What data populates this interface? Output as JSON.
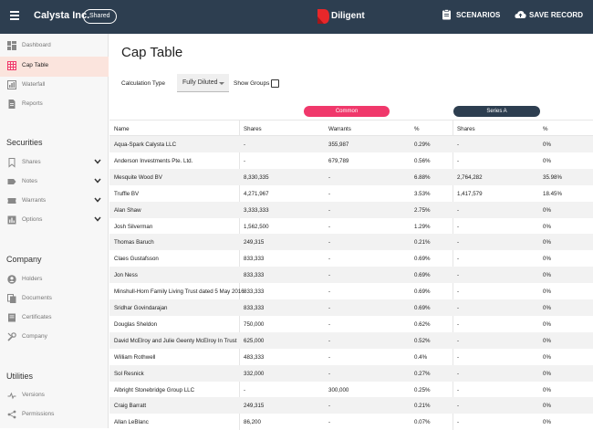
{
  "topbar": {
    "app_title": "Calysta Inc.",
    "shared_badge": "Shared",
    "brand_name": "Diligent",
    "scenarios_label": "SCENARIOS",
    "save_label": "SAVE RECORD",
    "bg_color": "#2d3e50",
    "brand_color": "#e8272a"
  },
  "sidebar": {
    "top_items": [
      {
        "label": "Dashboard",
        "icon": "dashboard-icon"
      },
      {
        "label": "Cap Table",
        "icon": "grid-icon",
        "active": true
      },
      {
        "label": "Waterfall",
        "icon": "waterfall-icon"
      },
      {
        "label": "Reports",
        "icon": "document-icon"
      }
    ],
    "securities_title": "Securities",
    "securities_items": [
      {
        "label": "Shares",
        "icon": "bookmark-icon"
      },
      {
        "label": "Notes",
        "icon": "tag-icon"
      },
      {
        "label": "Warrants",
        "icon": "ticket-icon"
      },
      {
        "label": "Options",
        "icon": "bar-chart-icon"
      }
    ],
    "company_title": "Company",
    "company_items": [
      {
        "label": "Holders",
        "icon": "person-icon"
      },
      {
        "label": "Documents",
        "icon": "files-icon"
      },
      {
        "label": "Certificates",
        "icon": "certificate-icon"
      },
      {
        "label": "Company",
        "icon": "tools-icon"
      }
    ],
    "utilities_title": "Utilities",
    "utilities_items": [
      {
        "label": "Versions",
        "icon": "versions-icon"
      },
      {
        "label": "Permissions",
        "icon": "share-icon"
      }
    ],
    "active_bg": "#fbe4dd",
    "active_icon_color": "#f0386b"
  },
  "main": {
    "title": "Cap Table",
    "calc_label": "Calculation Type",
    "calc_value": "Fully Diluted",
    "show_groups_label": "Show Groups",
    "show_groups_checked": false
  },
  "table": {
    "group_common": "Common",
    "group_series_a": "Series A",
    "common_color": "#f0386b",
    "series_a_color": "#2d3e50",
    "headers": {
      "name": "Name",
      "shares": "Shares",
      "warrants": "Warrants",
      "pct": "%",
      "sa_shares": "Shares",
      "sa_pct": "%"
    },
    "rows": [
      {
        "name": "Aqua-Spark Calysta LLC",
        "shares": "-",
        "warrants": "355,987",
        "pct": "0.29%",
        "sa_shares": "-",
        "sa_pct": "0%"
      },
      {
        "name": "Anderson Investments Pte. Ltd.",
        "shares": "-",
        "warrants": "679,789",
        "pct": "0.56%",
        "sa_shares": "-",
        "sa_pct": "0%"
      },
      {
        "name": "Mesquite Wood BV",
        "shares": "8,330,335",
        "warrants": "-",
        "pct": "6.88%",
        "sa_shares": "2,764,282",
        "sa_pct": "35.98%"
      },
      {
        "name": "Truffle BV",
        "shares": "4,271,967",
        "warrants": "-",
        "pct": "3.53%",
        "sa_shares": "1,417,579",
        "sa_pct": "18.45%"
      },
      {
        "name": "Alan Shaw",
        "shares": "3,333,333",
        "warrants": "-",
        "pct": "2.75%",
        "sa_shares": "-",
        "sa_pct": "0%"
      },
      {
        "name": "Josh Silverman",
        "shares": "1,562,500",
        "warrants": "-",
        "pct": "1.29%",
        "sa_shares": "-",
        "sa_pct": "0%"
      },
      {
        "name": "Thomas Baruch",
        "shares": "249,315",
        "warrants": "-",
        "pct": "0.21%",
        "sa_shares": "-",
        "sa_pct": "0%"
      },
      {
        "name": "Claes Gustafsson",
        "shares": "833,333",
        "warrants": "-",
        "pct": "0.69%",
        "sa_shares": "-",
        "sa_pct": "0%"
      },
      {
        "name": "Jon Ness",
        "shares": "833,333",
        "warrants": "-",
        "pct": "0.69%",
        "sa_shares": "-",
        "sa_pct": "0%"
      },
      {
        "name": "Minshull-Horn Family Living Trust dated 5 May 2016",
        "shares": "833,333",
        "warrants": "-",
        "pct": "0.69%",
        "sa_shares": "-",
        "sa_pct": "0%"
      },
      {
        "name": "Sridhar Govindarajan",
        "shares": "833,333",
        "warrants": "-",
        "pct": "0.69%",
        "sa_shares": "-",
        "sa_pct": "0%"
      },
      {
        "name": "Douglas Sheldon",
        "shares": "750,000",
        "warrants": "-",
        "pct": "0.62%",
        "sa_shares": "-",
        "sa_pct": "0%"
      },
      {
        "name": "David McElroy and Julie Geenty McElroy In Trust",
        "shares": "625,000",
        "warrants": "-",
        "pct": "0.52%",
        "sa_shares": "-",
        "sa_pct": "0%"
      },
      {
        "name": "William Rothwell",
        "shares": "483,333",
        "warrants": "-",
        "pct": "0.4%",
        "sa_shares": "-",
        "sa_pct": "0%"
      },
      {
        "name": "Sol Resnick",
        "shares": "332,000",
        "warrants": "-",
        "pct": "0.27%",
        "sa_shares": "-",
        "sa_pct": "0%"
      },
      {
        "name": "Albright Stonebridge Group LLC",
        "shares": "-",
        "warrants": "300,000",
        "pct": "0.25%",
        "sa_shares": "-",
        "sa_pct": "0%"
      },
      {
        "name": "Craig Barratt",
        "shares": "249,315",
        "warrants": "-",
        "pct": "0.21%",
        "sa_shares": "-",
        "sa_pct": "0%"
      },
      {
        "name": "Allan LeBlanc",
        "shares": "86,200",
        "warrants": "-",
        "pct": "0.07%",
        "sa_shares": "-",
        "sa_pct": "0%"
      }
    ]
  }
}
